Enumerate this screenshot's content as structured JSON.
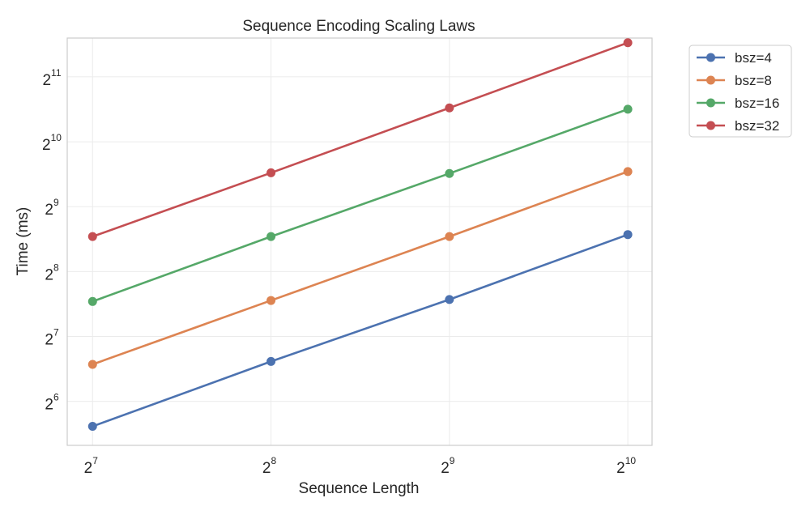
{
  "chart_data": {
    "type": "line",
    "title": "Sequence Encoding Scaling Laws",
    "xlabel": "Sequence Length",
    "ylabel": "Time (ms)",
    "x_scale": "log2",
    "y_scale": "log2",
    "x": [
      128,
      256,
      512,
      1024
    ],
    "xlim": [
      116,
      1125
    ],
    "ylim": [
      40,
      3100
    ],
    "x_ticks": [
      {
        "base": "2",
        "exp": "7",
        "value": 128
      },
      {
        "base": "2",
        "exp": "8",
        "value": 256
      },
      {
        "base": "2",
        "exp": "9",
        "value": 512
      },
      {
        "base": "2",
        "exp": "10",
        "value": 1024
      }
    ],
    "y_ticks": [
      {
        "base": "2",
        "exp": "6",
        "value": 64
      },
      {
        "base": "2",
        "exp": "7",
        "value": 128
      },
      {
        "base": "2",
        "exp": "8",
        "value": 256
      },
      {
        "base": "2",
        "exp": "9",
        "value": 512
      },
      {
        "base": "2",
        "exp": "10",
        "value": 1024
      },
      {
        "base": "2",
        "exp": "11",
        "value": 2048
      }
    ],
    "grid": true,
    "legend_position": "outside-top-right",
    "series": [
      {
        "name": "bsz=4",
        "color": "#4c72b0",
        "values": [
          49,
          98,
          190,
          380
        ]
      },
      {
        "name": "bsz=8",
        "color": "#dd8452",
        "values": [
          95,
          188,
          372,
          745
        ]
      },
      {
        "name": "bsz=16",
        "color": "#55a868",
        "values": [
          186,
          372,
          730,
          1450
        ]
      },
      {
        "name": "bsz=32",
        "color": "#c44e52",
        "values": [
          372,
          735,
          1470,
          2950
        ]
      }
    ]
  }
}
